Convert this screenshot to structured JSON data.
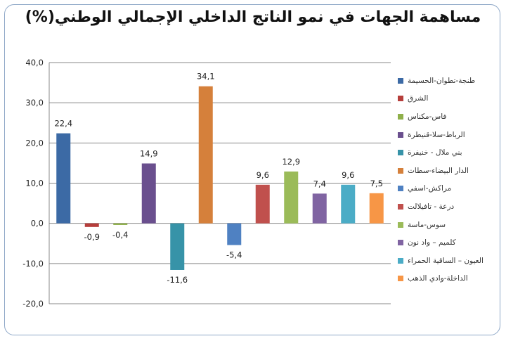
{
  "chart_data": {
    "type": "bar",
    "title": "مساهمة الجهات في نمو الناتج الداخلي الإجمالي الوطني(%)",
    "ylim": [
      -20,
      40
    ],
    "yticks": [
      "40,0",
      "30,0",
      "20,0",
      "10,0",
      "0,0",
      "-10,0",
      "-20,0"
    ],
    "ytick_values": [
      40,
      30,
      20,
      10,
      0,
      -10,
      -20
    ],
    "grid": true,
    "legend_position": "right",
    "series": [
      {
        "name": "طنجة-تطوان-الحسيمة",
        "value": 22.4,
        "label": "22,4",
        "color": "#3c6aa5"
      },
      {
        "name": "الشرق",
        "value": -0.9,
        "label": "-0,9",
        "color": "#b63e3b"
      },
      {
        "name": "فاس-مكناس",
        "value": -0.4,
        "label": "-0,4",
        "color": "#8fb04a"
      },
      {
        "name": "الرباط-سلا-قنيطرة",
        "value": 14.9,
        "label": "14,9",
        "color": "#6a4f8e"
      },
      {
        "name": "بني ملال - خنيفرة",
        "value": -11.6,
        "label": "-11,6",
        "color": "#3793a8"
      },
      {
        "name": "الدار البيضاء-سطات",
        "value": 34.1,
        "label": "34,1",
        "color": "#d5803b"
      },
      {
        "name": "مراكش-اسفي",
        "value": -5.4,
        "label": "-5,4",
        "color": "#4f81c2"
      },
      {
        "name": "درعة - تافيلالت",
        "value": 9.6,
        "label": "9,6",
        "color": "#c0504d"
      },
      {
        "name": "سوس-ماسة",
        "value": 12.9,
        "label": "12,9",
        "color": "#9bbb59"
      },
      {
        "name": "كلميم – واد نون",
        "value": 7.4,
        "label": "7,4",
        "color": "#8064a2"
      },
      {
        "name": "العيون – الساقية الحمراء",
        "value": 9.6,
        "label": "9,6",
        "color": "#4bacc6"
      },
      {
        "name": "الداخلة-وادي الذهب",
        "value": 7.5,
        "label": "7,5",
        "color": "#f79646"
      }
    ]
  }
}
